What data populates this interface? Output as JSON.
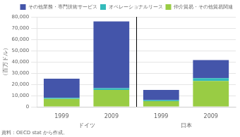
{
  "chart_data": {
    "type": "bar",
    "categories": [
      "1999",
      "2009",
      "1999",
      "2009"
    ],
    "group_labels": [
      "ドイツ",
      "日本"
    ],
    "series": [
      {
        "name": "仲介貿易・その他貿易関連",
        "color": "#99cc44",
        "values": [
          7000,
          15000,
          5000,
          23000
        ]
      },
      {
        "name": "オペレーショナルリース",
        "color": "#33bbbb",
        "values": [
          1000,
          1500,
          1000,
          2500
        ]
      },
      {
        "name": "その他業務・専門技術サービス",
        "color": "#4455aa",
        "values": [
          17000,
          59500,
          9000,
          16000
        ]
      }
    ],
    "stacked": true,
    "ylabel": "（百万ドル）",
    "ylim": [
      0,
      80000
    ],
    "yticks": [
      0,
      {
        "value": 10000,
        "label": "10,000"
      },
      {
        "value": 20000,
        "label": "20,000"
      },
      {
        "value": 30000,
        "label": "30,000"
      },
      {
        "value": 40000,
        "label": "40,000"
      },
      {
        "value": 50000,
        "label": "50,000"
      },
      {
        "value": 60000,
        "label": "60,000"
      },
      {
        "value": 70000,
        "label": "70,000"
      },
      {
        "value": 80000,
        "label": "80,000"
      }
    ],
    "grid": true,
    "legend": "upper right",
    "source": "資料：OECD stat から作成。"
  }
}
